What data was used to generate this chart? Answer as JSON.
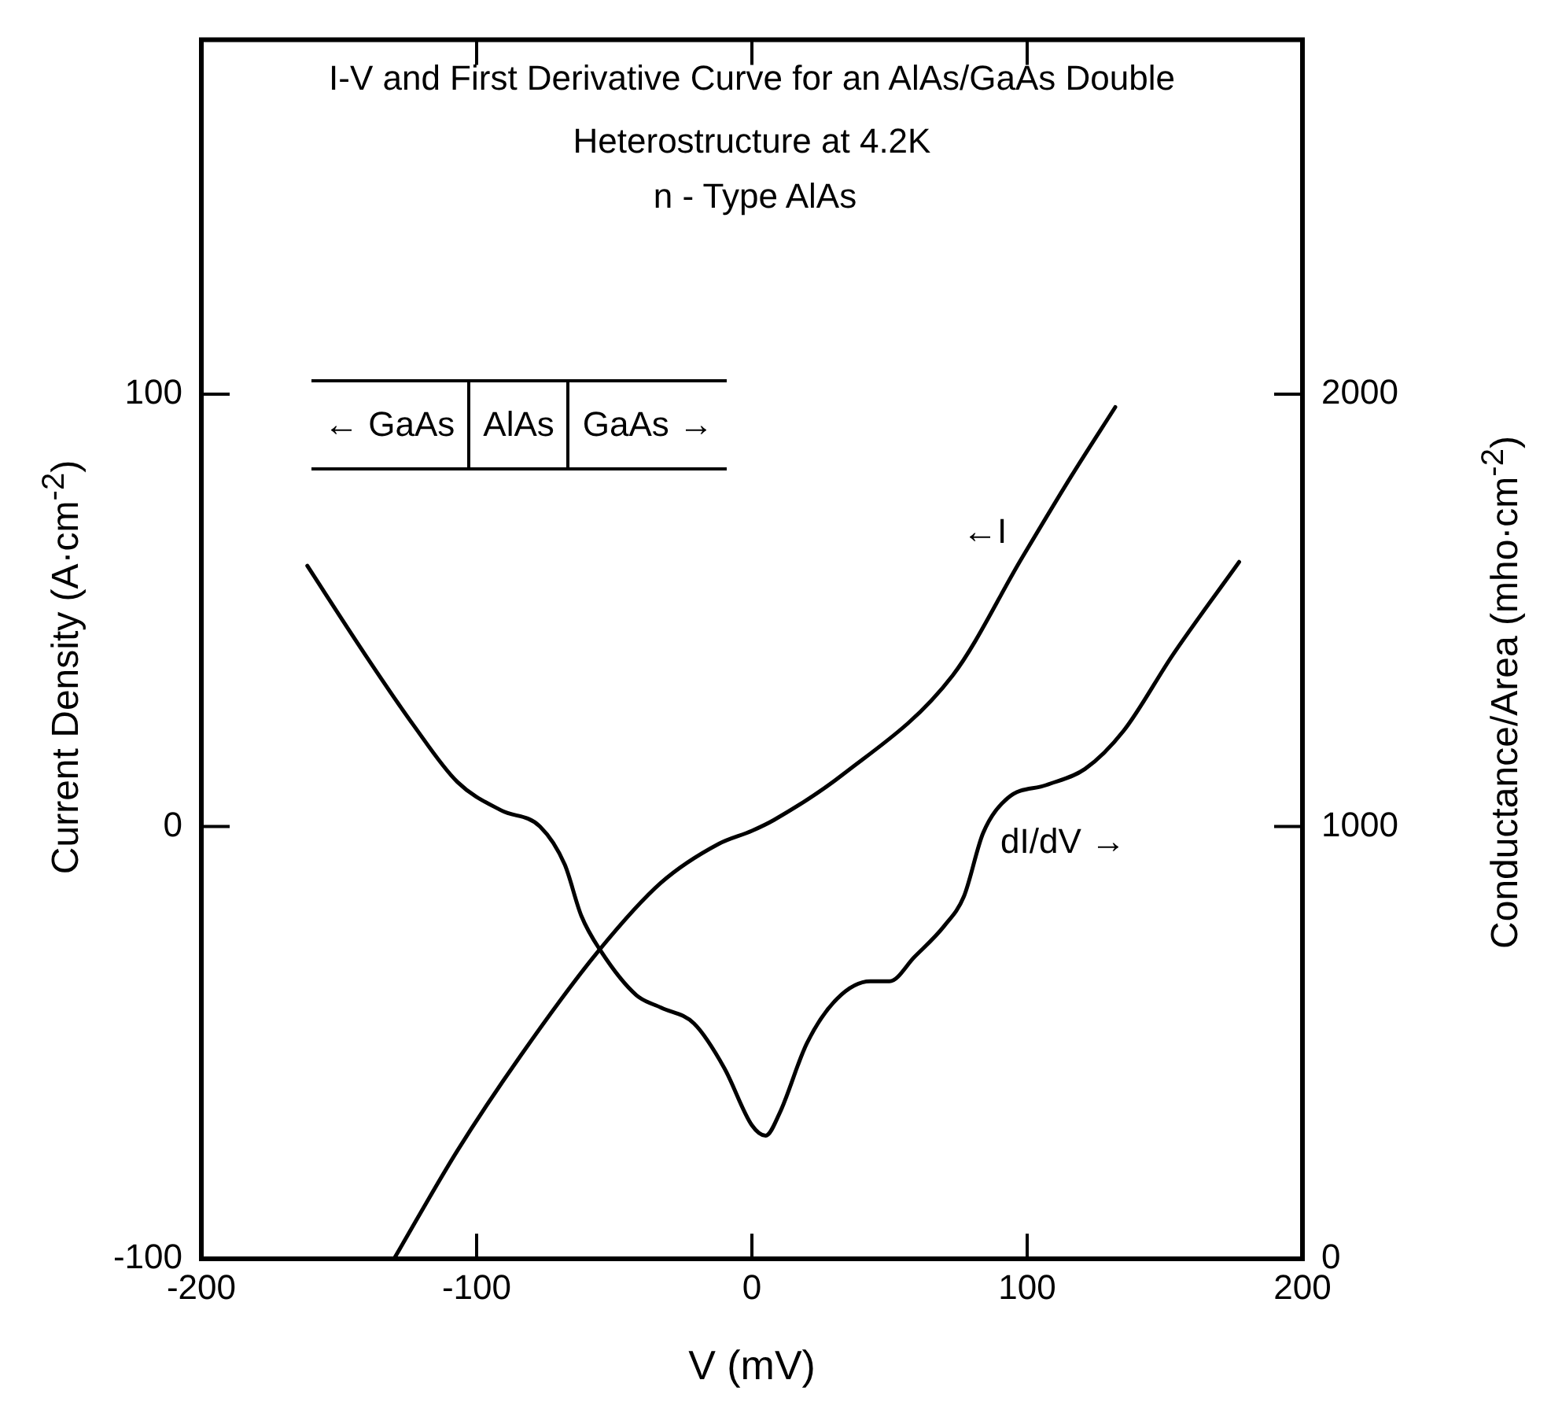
{
  "chart_data": {
    "type": "line",
    "title": "I-V and First Derivative Curve for an AlAs/GaAs Double Heterostructure at 4.2K",
    "subtitle": "n - Type AlAs",
    "xlabel": "V (mV)",
    "ylabel": "Current Density (A·cm$^{-2}$)",
    "y2label": "Conductance/Area (mho·cm$^{-2}$)",
    "xlim": [
      -200,
      200
    ],
    "xticks": [
      -200,
      -100,
      0,
      100,
      200
    ],
    "ylim": [
      -100,
      182
    ],
    "yticks": [
      -100,
      0,
      100
    ],
    "y2lim": [
      0,
      2820
    ],
    "y2ticks": [
      0,
      1000,
      2000
    ],
    "grid": false,
    "legend": false,
    "marker": "none",
    "line_style": "solid",
    "series": [
      {
        "color": "#000000",
        "x": [
          -130,
          -107,
          -84,
          -56,
          -33,
          -12,
          0,
          8,
          33,
          73,
          98,
          116,
          132
        ],
        "values": [
          -100,
          -75,
          -53,
          -29,
          -13,
          -4,
          -1,
          1.5,
          12,
          35,
          62,
          81,
          97
        ]
      },
      {
        "color": "#000000",
        "axis": "y2",
        "x": [
          -161.5,
          -142,
          -123,
          -107,
          -91,
          -77,
          -68,
          -62,
          -55,
          -42,
          -33,
          -21,
          -10,
          0,
          5,
          10,
          20,
          31,
          43,
          50,
          59,
          70,
          77,
          84,
          93,
          107,
          121,
          135,
          153,
          177
        ],
        "values": [
          1603,
          1412,
          1235,
          1103,
          1037,
          1000,
          912,
          794,
          713,
          610,
          581,
          544,
          441,
          309,
          285,
          336,
          499,
          602,
          642,
          642,
          698,
          771,
          838,
          985,
          1066,
          1096,
          1133,
          1221,
          1398,
          1612
        ]
      }
    ],
    "annotations": [
      "←I",
      "dI/dV →",
      "← GaAs",
      "AlAs",
      "GaAs →"
    ]
  }
}
